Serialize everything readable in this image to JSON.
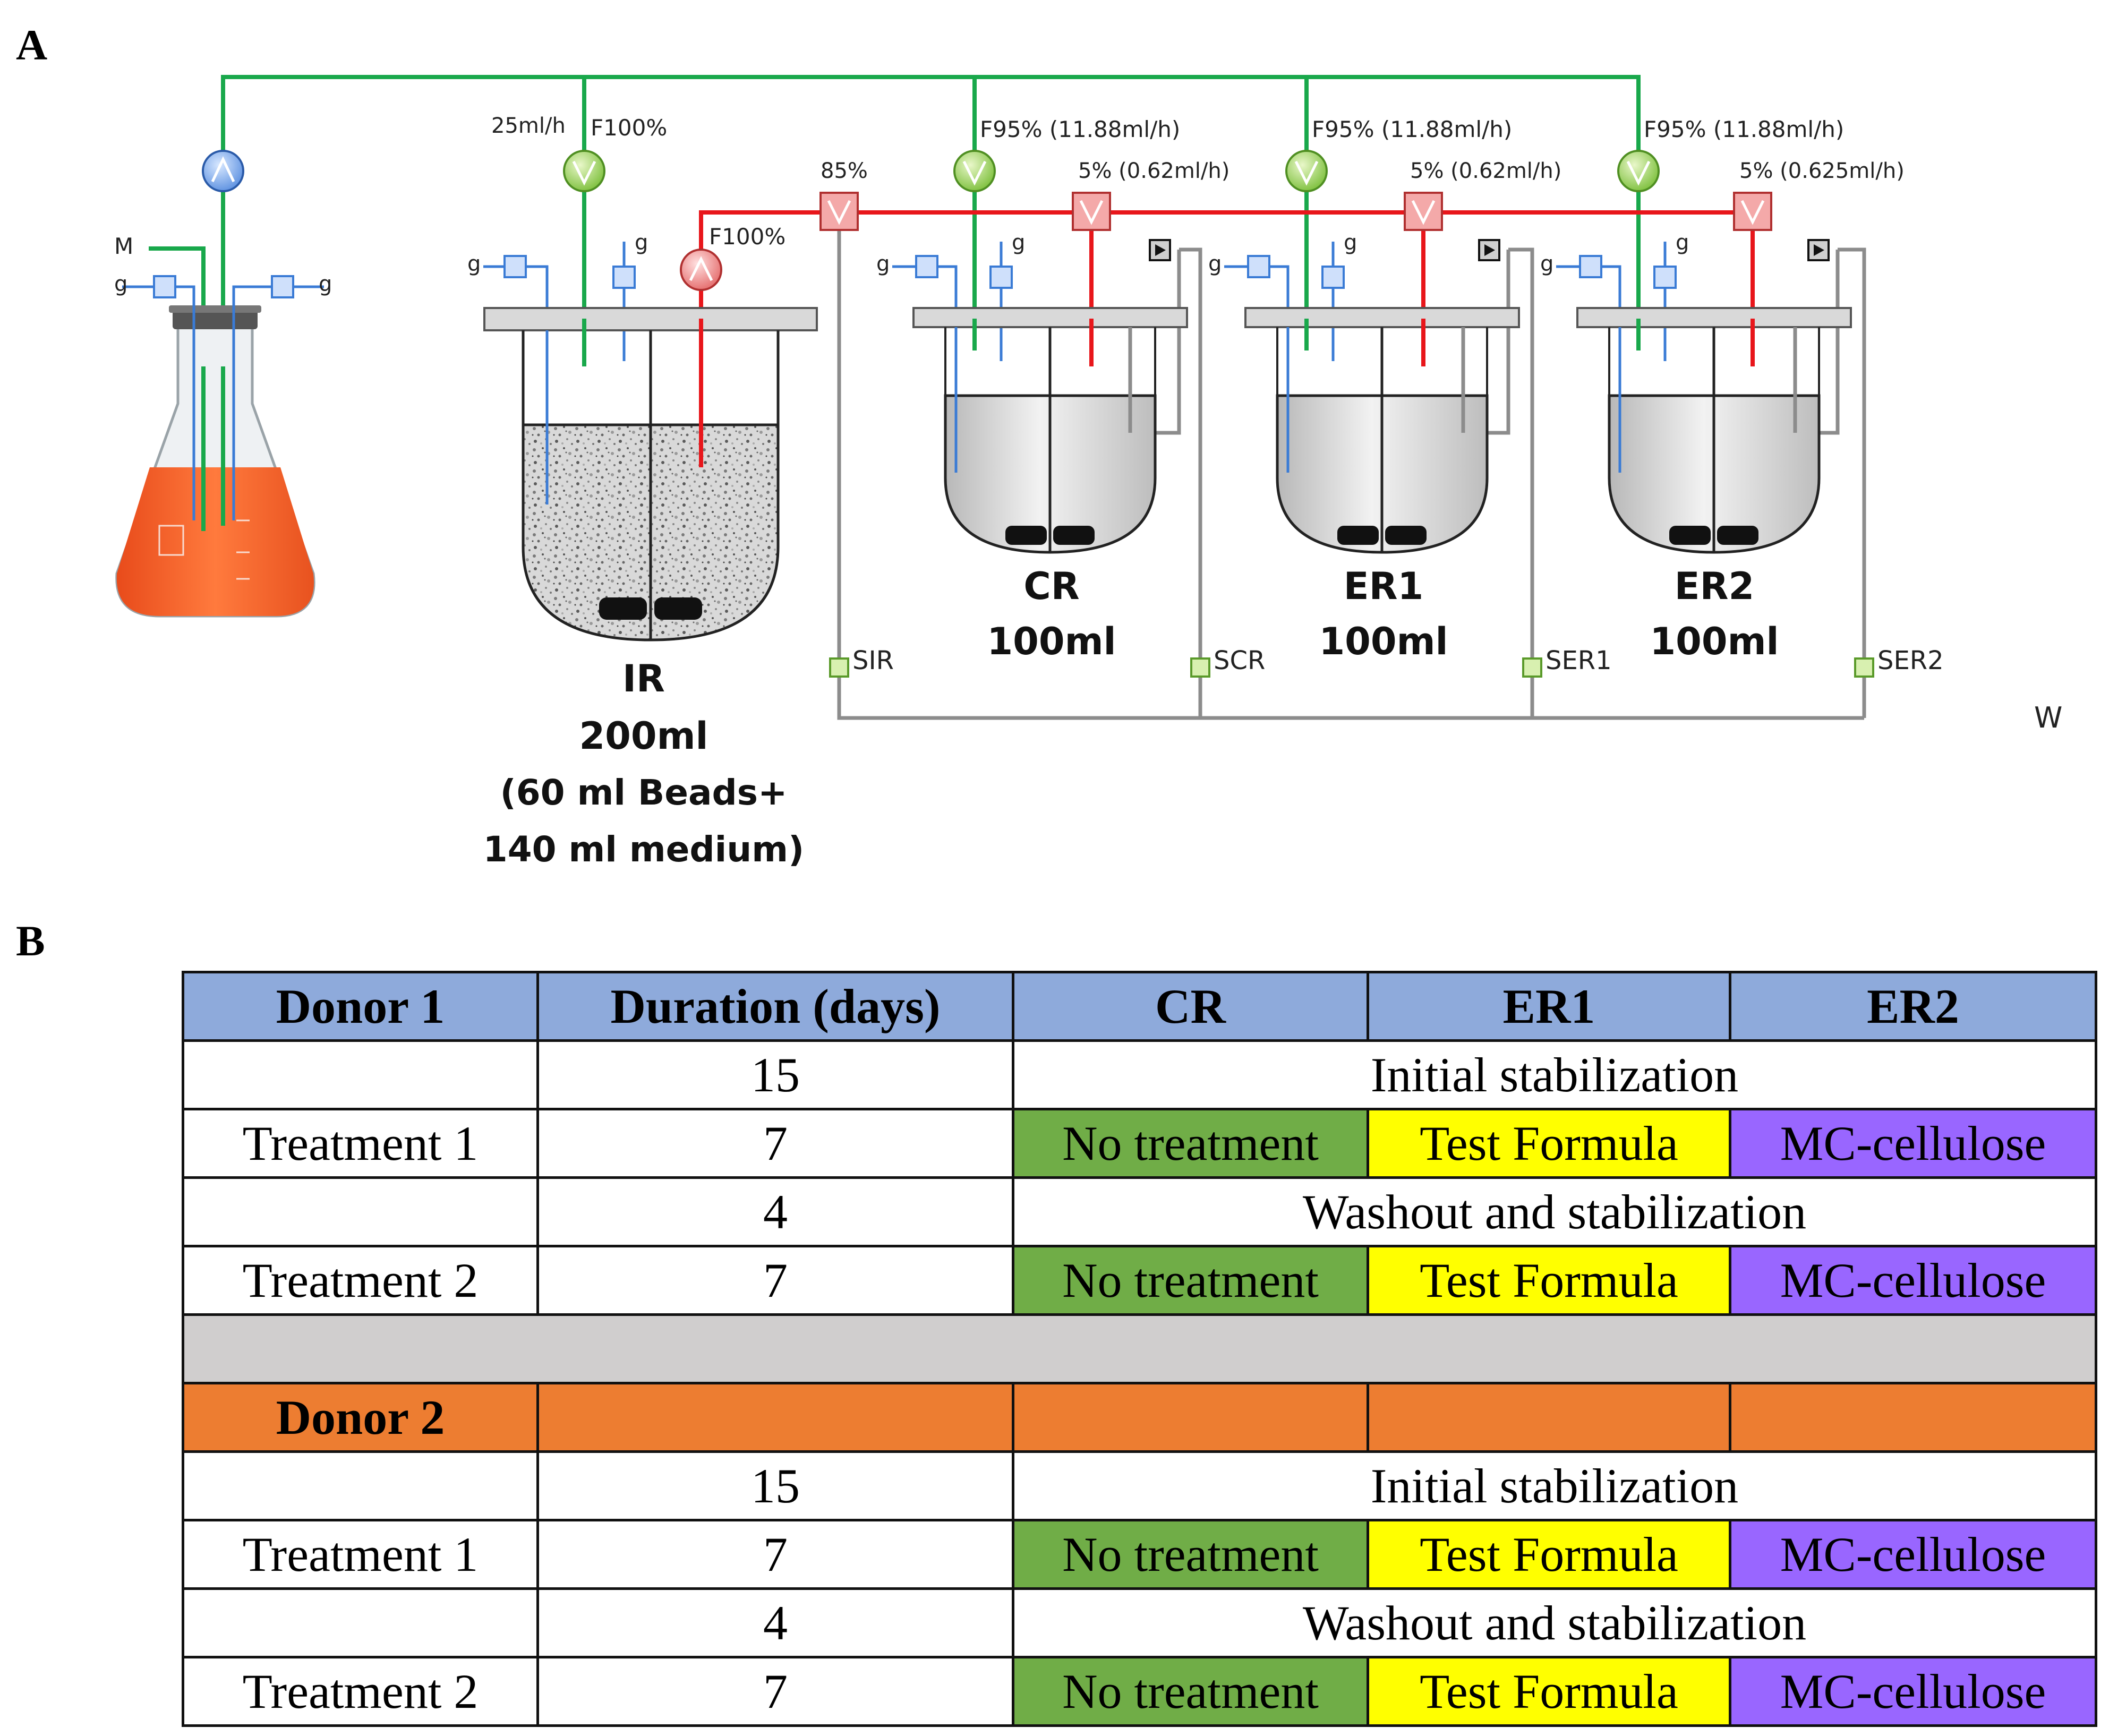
{
  "panels": {
    "a": "A",
    "b": "B"
  },
  "diagram": {
    "flask": {
      "medium": "M",
      "gas_left": "g",
      "gas_right": "g"
    },
    "ir": {
      "feed_rate": "25ml/h",
      "feed": "F100%",
      "outflow": "F100%",
      "gas1": "g",
      "gas2": "g",
      "name": "IR",
      "volume": "200ml",
      "beads": "(60 ml Beads+",
      "medium": "140 ml medium)",
      "sampling": "SIR"
    },
    "split_main": "85%",
    "cr": {
      "feed": "F95% (11.88ml/h)",
      "effluent": "5% (0.62ml/h)",
      "name": "CR",
      "volume": "100ml",
      "sampling": "SCR",
      "gas1": "g",
      "gas2": "g"
    },
    "er1": {
      "feed": "F95% (11.88ml/h)",
      "effluent": "5% (0.62ml/h)",
      "name": "ER1",
      "volume": "100ml",
      "sampling": "SER1",
      "gas1": "g",
      "gas2": "g"
    },
    "er2": {
      "feed": "F95% (11.88ml/h)",
      "effluent": "5% (0.625ml/h)",
      "name": "ER2",
      "volume": "100ml",
      "sampling": "SER2",
      "gas1": "g",
      "gas2": "g"
    },
    "waste": "W",
    "colors": {
      "feed_line": "#19a84b",
      "effluent_line": "#e8161b",
      "gas_line": "#3a7bd5",
      "waste_line": "#8c8c8c"
    }
  },
  "table": {
    "header": [
      "Donor 1",
      "Duration (days)",
      "CR",
      "ER1",
      "ER2"
    ],
    "donor1_rows": [
      {
        "label": "",
        "days": "15",
        "span": "Initial stabilization"
      },
      {
        "label": "Treatment 1",
        "days": "7",
        "cr": "No treatment",
        "er1": "Test Formula",
        "er2": "MC-cellulose"
      },
      {
        "label": "",
        "days": "4",
        "span": "Washout and stabilization"
      },
      {
        "label": "Treatment 2",
        "days": "7",
        "cr": "No treatment",
        "er1": "Test Formula",
        "er2": "MC-cellulose"
      }
    ],
    "donor2_label": "Donor 2",
    "donor2_rows": [
      {
        "label": "",
        "days": "15",
        "span": "Initial stabilization"
      },
      {
        "label": "Treatment 1",
        "days": "7",
        "cr": "No treatment",
        "er1": "Test Formula",
        "er2": "MC-cellulose"
      },
      {
        "label": "",
        "days": "4",
        "span": "Washout and stabilization"
      },
      {
        "label": "Treatment 2",
        "days": "7",
        "cr": "No treatment",
        "er1": "Test Formula",
        "er2": "MC-cellulose"
      }
    ],
    "colors": {
      "donor1": "#8eaadb",
      "donor2": "#ed7d31",
      "separator": "#d0cece",
      "no_treatment": "#70ad47",
      "test_formula": "#ffff00",
      "mc_cellulose": "#9966ff"
    }
  }
}
